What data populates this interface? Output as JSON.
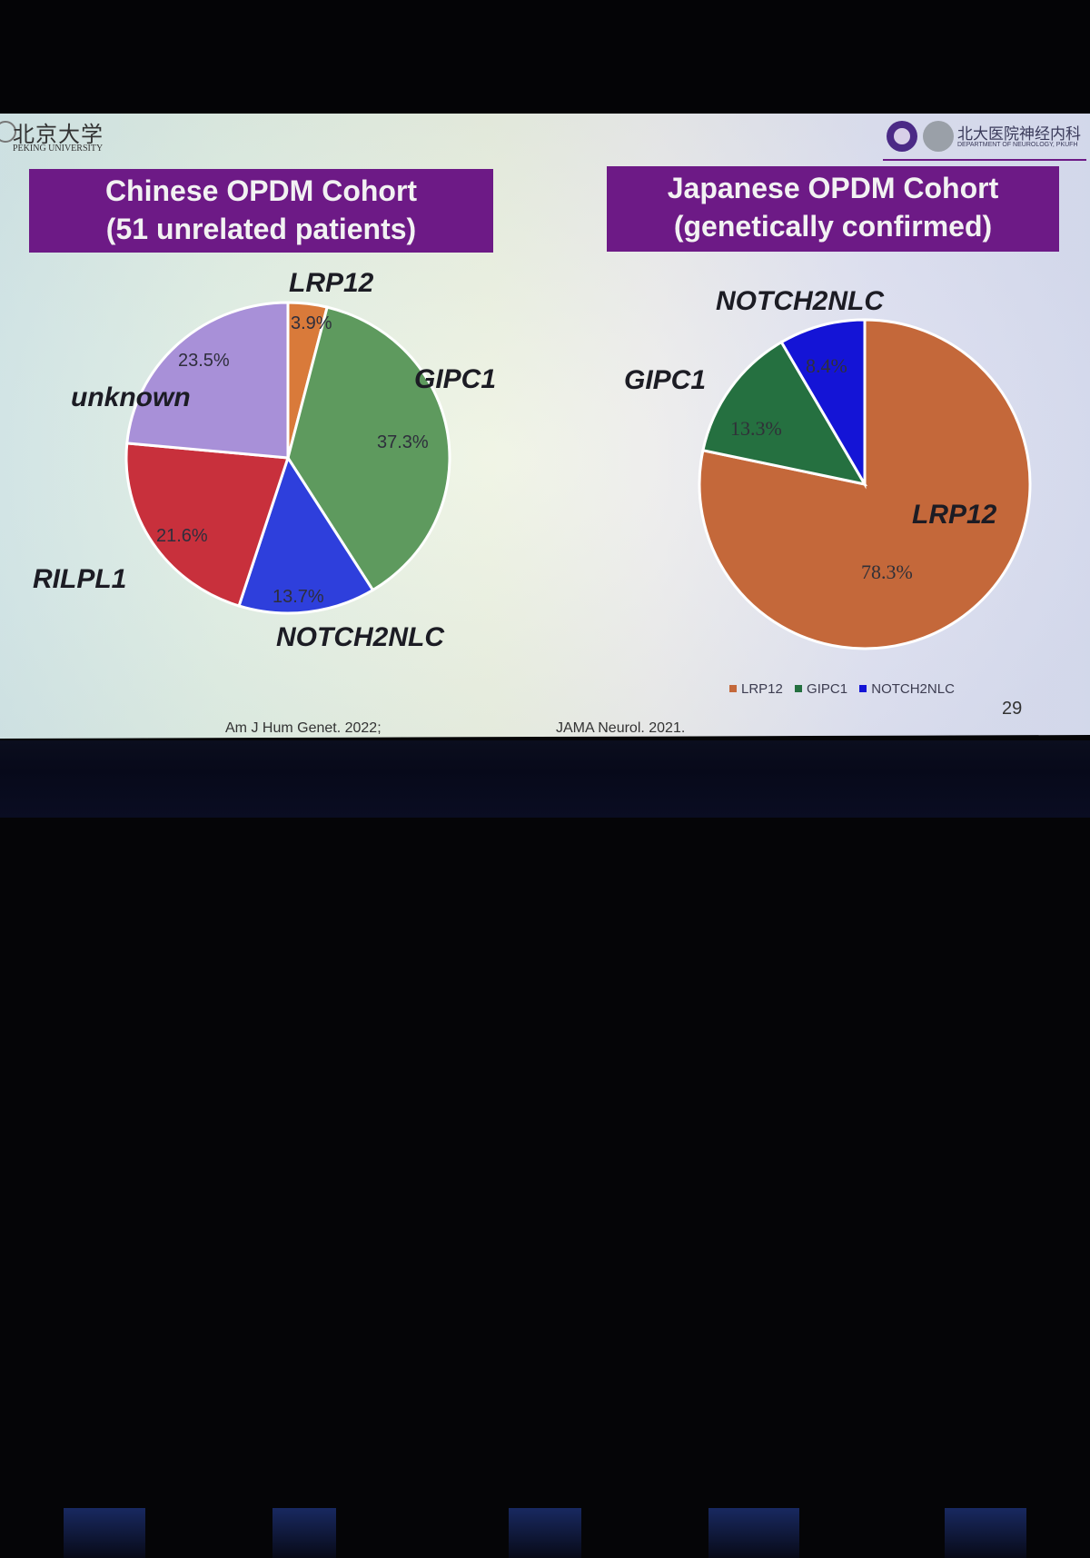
{
  "header": {
    "university_cn": "北京大学",
    "university_en": "PEKING UNIVERSITY",
    "dept_cn": "北大医院神经内科",
    "dept_en": "DEPARTMENT OF NEUROLOGY, PKUFH"
  },
  "left_title": [
    "Chinese OPDM Cohort",
    "(51 unrelated patients)"
  ],
  "right_title": [
    "Japanese OPDM Cohort",
    "(genetically confirmed)"
  ],
  "chart_data": [
    {
      "type": "pie",
      "title": "Chinese OPDM Cohort (51 unrelated patients)",
      "slices": [
        {
          "label": "LRP12",
          "value": 3.9,
          "display": "3.9%",
          "color": "#d97a3a"
        },
        {
          "label": "GIPC1",
          "value": 37.3,
          "display": "37.3%",
          "color": "#5e9a5e"
        },
        {
          "label": "NOTCH2NLC",
          "value": 13.7,
          "display": "13.7%",
          "color": "#2e3fdc"
        },
        {
          "label": "RILPL1",
          "value": 21.6,
          "display": "21.6%",
          "color": "#c8303c"
        },
        {
          "label": "unknown",
          "value": 23.5,
          "display": "23.5%",
          "color": "#a890d8"
        }
      ]
    },
    {
      "type": "pie",
      "title": "Japanese OPDM Cohort (genetically confirmed)",
      "slices": [
        {
          "label": "LRP12",
          "value": 78.3,
          "display": "78.3%",
          "color": "#c4683a"
        },
        {
          "label": "GIPC1",
          "value": 13.3,
          "display": "13.3%",
          "color": "#257040"
        },
        {
          "label": "NOTCH2NLC",
          "value": 8.4,
          "display": "8.4%",
          "color": "#1414d6"
        }
      ],
      "legend": [
        "LRP12",
        "GIPC1",
        "NOTCH2NLC"
      ],
      "legend_position": "bottom-right"
    }
  ],
  "references": {
    "left": "Am J Hum Genet. 2022;",
    "right": "JAMA Neurol. 2021."
  },
  "page_number": "29"
}
